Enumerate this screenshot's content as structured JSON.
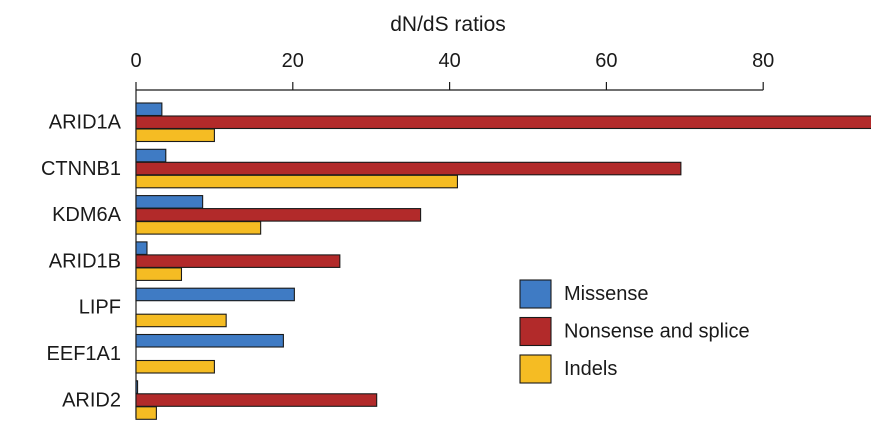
{
  "chart_data": {
    "type": "bar",
    "orientation": "horizontal",
    "title": "",
    "xlabel": "dN/dS ratios",
    "ylabel": "",
    "xaxis_position": "top",
    "xlim": [
      0,
      94
    ],
    "xticks": [
      0,
      20,
      40,
      60,
      80
    ],
    "grid": false,
    "legend_position": "right",
    "categories": [
      "ARID1A",
      "CTNNB1",
      "KDM6A",
      "ARID1B",
      "LIPF",
      "EEF1A1",
      "ARID2"
    ],
    "series": [
      {
        "name": "Missense",
        "color": "#3f7bc4",
        "values": [
          3.3,
          3.8,
          8.5,
          1.4,
          20.2,
          18.8,
          0.2
        ]
      },
      {
        "name": "Nonsense and splice",
        "color": "#b22a2a",
        "values": [
          94,
          69.5,
          36.3,
          26,
          0,
          0,
          30.7
        ]
      },
      {
        "name": "Indels",
        "color": "#f5bc23",
        "values": [
          10,
          41,
          15.9,
          5.8,
          11.5,
          10,
          2.6
        ]
      }
    ]
  }
}
